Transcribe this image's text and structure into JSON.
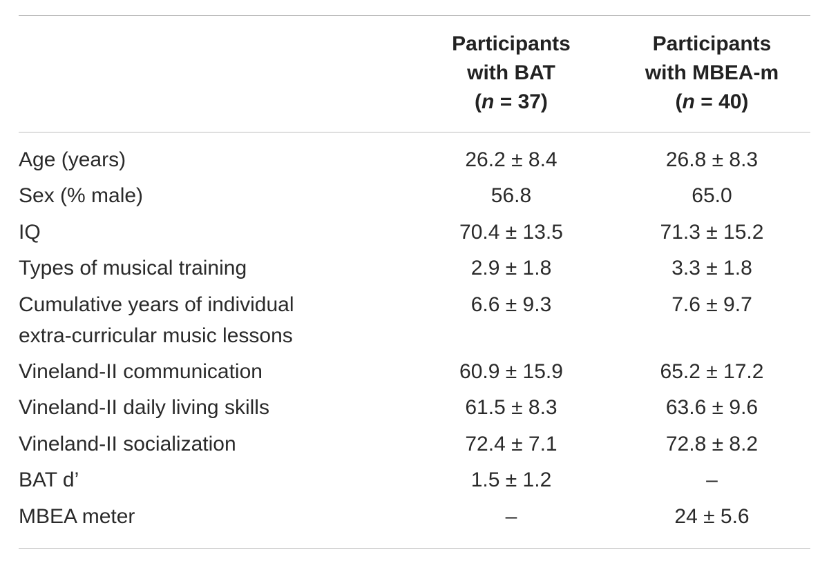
{
  "header": {
    "col1": {
      "line1": "Participants",
      "line2": "with BAT",
      "n_label": "n",
      "n_value": " = 37)"
    },
    "col2": {
      "line1": "Participants",
      "line2": "with MBEA-m",
      "n_label": "n",
      "n_value": " = 40)"
    },
    "open_paren": "("
  },
  "rows": [
    {
      "label": "Age (years)",
      "bat": "26.2 ± 8.4",
      "mbea": "26.8 ± 8.3"
    },
    {
      "label": "Sex (% male)",
      "bat": "56.8",
      "mbea": "65.0"
    },
    {
      "label": "IQ",
      "bat": "70.4 ± 13.5",
      "mbea": "71.3 ± 15.2"
    },
    {
      "label": "Types of musical training",
      "bat": "2.9 ± 1.8",
      "mbea": "3.3 ± 1.8"
    },
    {
      "label": "Cumulative years of individual",
      "label2": "extra-curricular music lessons",
      "bat": "6.6 ± 9.3",
      "mbea": "7.6 ± 9.7"
    },
    {
      "label": "Vineland-II communication",
      "bat": "60.9 ± 15.9",
      "mbea": "65.2 ± 17.2"
    },
    {
      "label": "Vineland-II daily living skills",
      "bat": "61.5 ± 8.3",
      "mbea": "63.6 ± 9.6"
    },
    {
      "label": "Vineland-II socialization",
      "bat": "72.4 ± 7.1",
      "mbea": "72.8 ± 8.2"
    },
    {
      "label": "BAT d’",
      "bat": "1.5 ± 1.2",
      "mbea": "–"
    },
    {
      "label": "MBEA meter",
      "bat": "–",
      "mbea": "24 ± 5.6"
    }
  ]
}
